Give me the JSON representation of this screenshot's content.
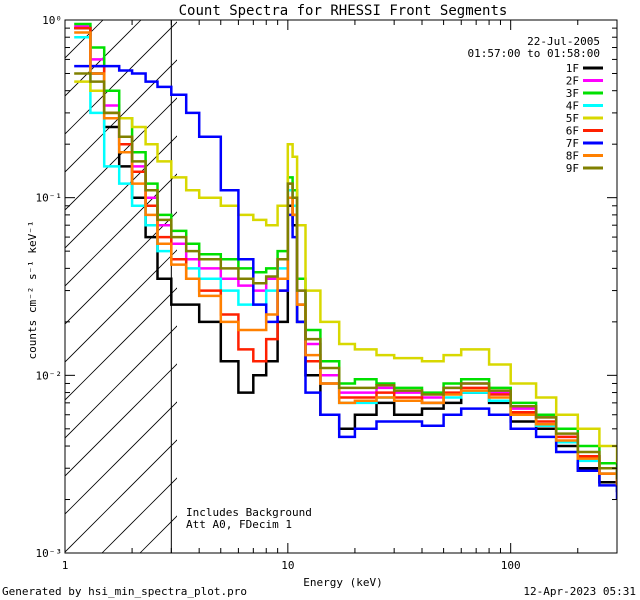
{
  "chart_data": {
    "type": "line",
    "title": "Count Spectra for RHESSI Front Segments",
    "xlabel": "Energy (keV)",
    "ylabel": "counts cm⁻² s⁻¹ keV⁻¹",
    "xscale": "log",
    "yscale": "log",
    "xlim": [
      1,
      300
    ],
    "ylim": [
      0.001,
      1.0
    ],
    "x_ticks": [
      1,
      10,
      100
    ],
    "x_tick_labels": [
      "1",
      "10",
      "100"
    ],
    "y_ticks": [
      0.001,
      0.01,
      0.1,
      1.0
    ],
    "y_tick_labels": [
      "10⁻³",
      "10⁻²",
      "10⁻¹",
      "10⁰"
    ],
    "date": "22-Jul-2005",
    "time_range": "01:57:00 to 01:58:00",
    "legend_position": "top-right",
    "shaded_region": {
      "x_from": 1,
      "x_to": 3,
      "style": "diagonal hatching"
    },
    "annotations": [
      "Includes Background",
      "Att A0, FDecim 1"
    ],
    "footer_left": "Generated by hsi_min_spectra_plot.pro",
    "footer_right": "12-Apr-2023 05:31",
    "energy_grid": [
      1.1,
      1.3,
      1.5,
      1.75,
      2.0,
      2.3,
      2.6,
      3.0,
      3.5,
      4.0,
      5.0,
      6.0,
      7.0,
      8.0,
      9.0,
      10.0,
      10.5,
      11.0,
      12.0,
      14.0,
      17.0,
      20.0,
      25.0,
      30.0,
      40.0,
      50.0,
      60.0,
      80.0,
      100.0,
      130.0,
      160.0,
      200.0,
      250.0,
      300.0
    ],
    "series": [
      {
        "name": "1F",
        "color": "#000000",
        "values": [
          0.9,
          0.5,
          0.25,
          0.15,
          0.1,
          0.06,
          0.035,
          0.025,
          0.025,
          0.02,
          0.012,
          0.008,
          0.01,
          0.012,
          0.02,
          0.09,
          0.07,
          0.02,
          0.01,
          0.006,
          0.005,
          0.006,
          0.007,
          0.006,
          0.0065,
          0.007,
          0.008,
          0.007,
          0.0055,
          0.005,
          0.004,
          0.003,
          0.0025,
          0.0022
        ]
      },
      {
        "name": "2F",
        "color": "#ff00ff",
        "values": [
          0.92,
          0.6,
          0.33,
          0.22,
          0.15,
          0.1,
          0.07,
          0.055,
          0.045,
          0.04,
          0.035,
          0.032,
          0.03,
          0.035,
          0.045,
          0.12,
          0.1,
          0.03,
          0.015,
          0.01,
          0.008,
          0.008,
          0.0085,
          0.008,
          0.0075,
          0.0085,
          0.009,
          0.008,
          0.0065,
          0.0058,
          0.0045,
          0.0035,
          0.003,
          0.0025
        ]
      },
      {
        "name": "3F",
        "color": "#00e000",
        "values": [
          0.95,
          0.7,
          0.4,
          0.28,
          0.18,
          0.12,
          0.08,
          0.065,
          0.055,
          0.048,
          0.045,
          0.04,
          0.038,
          0.04,
          0.05,
          0.13,
          0.11,
          0.035,
          0.018,
          0.012,
          0.009,
          0.0095,
          0.009,
          0.0085,
          0.008,
          0.009,
          0.0095,
          0.0085,
          0.007,
          0.006,
          0.005,
          0.004,
          0.0032,
          0.0027
        ]
      },
      {
        "name": "4F",
        "color": "#00ffff",
        "values": [
          0.8,
          0.3,
          0.15,
          0.12,
          0.09,
          0.07,
          0.05,
          0.045,
          0.04,
          0.035,
          0.03,
          0.025,
          0.025,
          0.03,
          0.04,
          0.11,
          0.09,
          0.025,
          0.012,
          0.009,
          0.007,
          0.007,
          0.0075,
          0.0072,
          0.007,
          0.0075,
          0.008,
          0.0072,
          0.006,
          0.0052,
          0.0042,
          0.0033,
          0.0028,
          0.0023
        ]
      },
      {
        "name": "5F",
        "color": "#d8d800",
        "values": [
          0.45,
          0.4,
          0.3,
          0.28,
          0.25,
          0.2,
          0.16,
          0.13,
          0.11,
          0.1,
          0.09,
          0.08,
          0.075,
          0.07,
          0.09,
          0.2,
          0.17,
          0.07,
          0.03,
          0.02,
          0.015,
          0.014,
          0.013,
          0.0125,
          0.012,
          0.013,
          0.014,
          0.0115,
          0.009,
          0.0075,
          0.006,
          0.005,
          0.004,
          0.0032
        ]
      },
      {
        "name": "6F",
        "color": "#ff2000",
        "values": [
          0.9,
          0.55,
          0.3,
          0.2,
          0.14,
          0.09,
          0.06,
          0.045,
          0.035,
          0.03,
          0.022,
          0.014,
          0.012,
          0.016,
          0.03,
          0.1,
          0.08,
          0.025,
          0.012,
          0.009,
          0.0075,
          0.0075,
          0.008,
          0.0075,
          0.007,
          0.008,
          0.0085,
          0.0078,
          0.0062,
          0.0055,
          0.0045,
          0.0035,
          0.0028,
          0.0024
        ]
      },
      {
        "name": "7F",
        "color": "#0000ff",
        "values": [
          0.55,
          0.55,
          0.55,
          0.52,
          0.5,
          0.45,
          0.42,
          0.38,
          0.3,
          0.22,
          0.11,
          0.045,
          0.025,
          0.02,
          0.03,
          0.08,
          0.06,
          0.02,
          0.008,
          0.006,
          0.0045,
          0.005,
          0.0055,
          0.0055,
          0.0052,
          0.006,
          0.0065,
          0.006,
          0.005,
          0.0045,
          0.0037,
          0.0029,
          0.0024,
          0.002
        ]
      },
      {
        "name": "8F",
        "color": "#ff8000",
        "values": [
          0.85,
          0.5,
          0.28,
          0.18,
          0.12,
          0.08,
          0.055,
          0.042,
          0.035,
          0.028,
          0.02,
          0.018,
          0.018,
          0.022,
          0.035,
          0.1,
          0.08,
          0.025,
          0.013,
          0.009,
          0.007,
          0.0072,
          0.0075,
          0.0072,
          0.007,
          0.0078,
          0.0082,
          0.0075,
          0.006,
          0.0053,
          0.0043,
          0.0034,
          0.0028,
          0.0024
        ]
      },
      {
        "name": "9F",
        "color": "#808000",
        "values": [
          0.5,
          0.45,
          0.3,
          0.22,
          0.16,
          0.11,
          0.075,
          0.06,
          0.05,
          0.045,
          0.04,
          0.035,
          0.033,
          0.036,
          0.045,
          0.12,
          0.1,
          0.03,
          0.016,
          0.011,
          0.0085,
          0.0085,
          0.0088,
          0.0082,
          0.0078,
          0.0085,
          0.009,
          0.0082,
          0.0067,
          0.0058,
          0.0047,
          0.0037,
          0.003,
          0.0026
        ]
      }
    ]
  }
}
